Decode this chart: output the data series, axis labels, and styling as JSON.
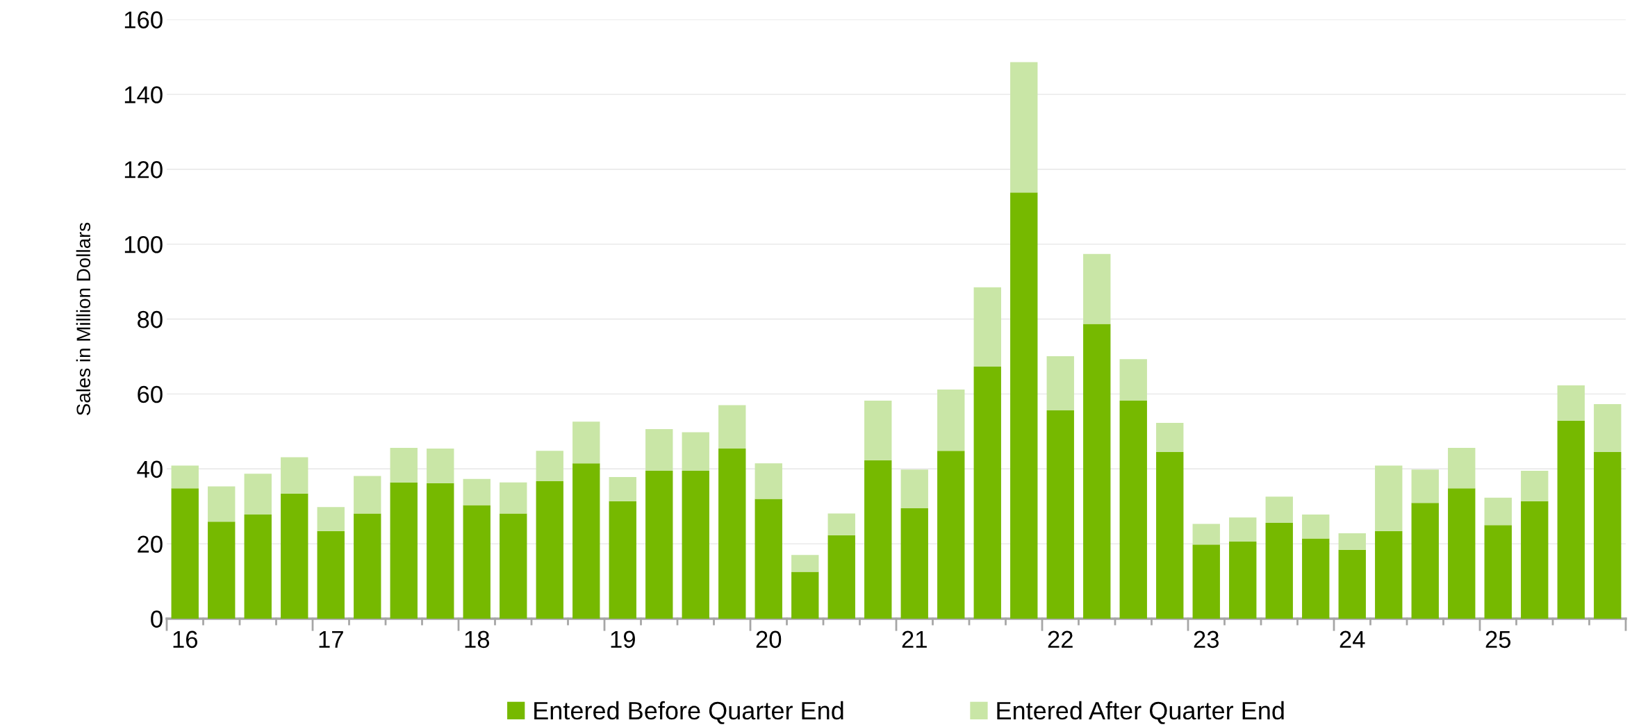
{
  "chart_data": {
    "type": "bar",
    "stacked": true,
    "ylabel": "Sales in Million Dollars",
    "categories": [
      "16",
      null,
      null,
      null,
      "17",
      null,
      null,
      null,
      "18",
      null,
      null,
      null,
      "19",
      null,
      null,
      null,
      "20",
      null,
      null,
      null,
      "21",
      null,
      null,
      null,
      "22",
      null,
      null,
      null,
      "23",
      null,
      null,
      null,
      "24",
      null,
      null,
      null,
      "25",
      null,
      null,
      null
    ],
    "series": [
      {
        "name": "Entered Before Quarter End",
        "color": "#76b900",
        "values": [
          34.8,
          25.9,
          27.8,
          33.4,
          23.4,
          28.1,
          36.4,
          36.2,
          30.3,
          28.1,
          36.7,
          41.5,
          31.4,
          39.5,
          39.5,
          45.4,
          32.0,
          12.5,
          22.3,
          42.3,
          29.5,
          44.8,
          67.3,
          113.8,
          55.6,
          78.7,
          58.2,
          44.5,
          19.8,
          20.6,
          25.6,
          21.4,
          18.4,
          23.4,
          30.9,
          34.8,
          25.0,
          31.4,
          52.9,
          44.5
        ]
      },
      {
        "name": "Entered After Quarter End",
        "color": "#c9e6a6",
        "values": [
          6.1,
          9.4,
          10.9,
          9.7,
          6.4,
          10.0,
          9.2,
          9.2,
          7.0,
          8.3,
          8.1,
          11.1,
          6.4,
          11.1,
          10.3,
          11.6,
          9.5,
          4.5,
          5.8,
          15.9,
          10.3,
          16.4,
          21.2,
          34.8,
          14.5,
          18.7,
          11.1,
          7.8,
          5.5,
          6.4,
          7.0,
          6.4,
          4.4,
          17.5,
          8.9,
          10.8,
          7.3,
          8.1,
          9.4,
          12.8
        ]
      }
    ],
    "ylim": [
      0,
      160
    ],
    "yticks": [
      0,
      20,
      40,
      60,
      80,
      100,
      120,
      140,
      160
    ],
    "grid": "y",
    "legend": "bottom"
  }
}
